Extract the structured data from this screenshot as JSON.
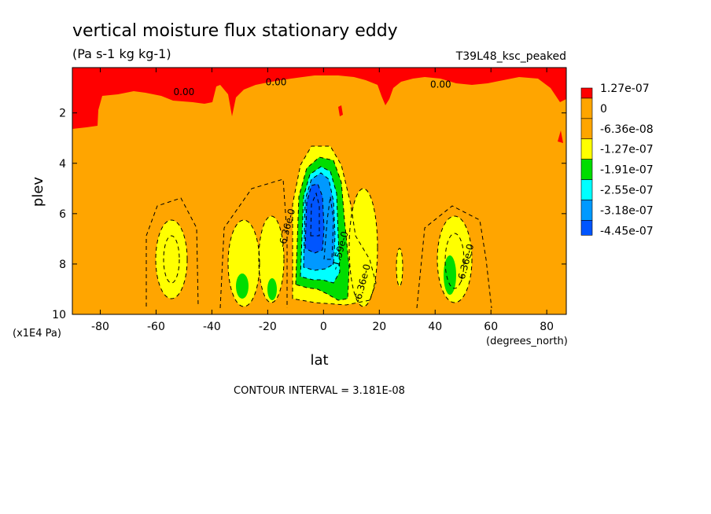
{
  "chart_data": {
    "type": "heatmap",
    "title": "vertical moisture flux stationary eddy",
    "subtitle": "(Pa s-1 kg kg-1)",
    "run_label": "T39L48_ksc_peaked",
    "xlabel": "lat",
    "xunits": "(degrees_north)",
    "ylabel": "plev",
    "yunits": "(x1E4 Pa)",
    "xlim": [
      -90,
      87
    ],
    "ylim": [
      10,
      0.2
    ],
    "xticks": [
      "-80",
      "-60",
      "-40",
      "-20",
      "0",
      "20",
      "40",
      "60",
      "80"
    ],
    "xtick_values": [
      -80,
      -60,
      -40,
      -20,
      0,
      20,
      40,
      60,
      80
    ],
    "yticks": [
      "2",
      "4",
      "6",
      "8",
      "10"
    ],
    "ytick_values": [
      2,
      4,
      6,
      8,
      10
    ],
    "contour_interval": "CONTOUR INTERVAL = 3.181E-08",
    "colorbar": {
      "labels": [
        "1.27e-07",
        "0",
        "-6.36e-08",
        "-1.27e-07",
        "-1.91e-07",
        "-2.55e-07",
        "-3.18e-07",
        "-4.45e-07"
      ],
      "colors": [
        "#ff0000",
        "#ffa500",
        "#ffa500",
        "#ffff00",
        "#00dd00",
        "#00ffff",
        "#0099ff",
        "#0055ff"
      ]
    },
    "contour_labels": [
      {
        "text": "0.00",
        "lat": -50,
        "plev": 1.3
      },
      {
        "text": "0.00",
        "lat": -17,
        "plev": 0.9
      },
      {
        "text": "0.00",
        "lat": 42,
        "plev": 1.0
      },
      {
        "text": "-6.36e-0",
        "lat": -12,
        "plev": 6.6
      },
      {
        "text": "-1.59e-0",
        "lat": 7,
        "plev": 7.5
      },
      {
        "text": "-6.36e-0",
        "lat": 15,
        "plev": 8.8
      },
      {
        "text": "-6.36e-0",
        "lat": 52,
        "plev": 8.0
      }
    ],
    "regions": [
      {
        "level": "orange",
        "color": "#ffa500",
        "value": "-6.36e-08 to 0",
        "extent": "background"
      },
      {
        "level": "red",
        "color": "#ff0000",
        "value": ">0",
        "lat_range": [
          -90,
          87
        ],
        "plev_range": [
          0.2,
          2.4
        ]
      },
      {
        "level": "yellow",
        "color": "#ffff00",
        "lat_center": -55,
        "plev_center": 8.0
      },
      {
        "level": "yellow",
        "color": "#ffff00",
        "lat_center": -28,
        "plev_center": 8.2
      },
      {
        "level": "yellow",
        "color": "#ffff00",
        "lat_center": -17,
        "plev_center": 8.5
      },
      {
        "level": "yellow",
        "color": "#ffff00",
        "lat_center": 15,
        "plev_center": 8.0
      },
      {
        "level": "yellow",
        "color": "#ffff00",
        "lat_center": 47,
        "plev_center": 8.3
      },
      {
        "level": "yellow",
        "color": "#ffff00",
        "lat_center": 0,
        "plev_center": 6.5
      },
      {
        "level": "green",
        "color": "#00dd00",
        "lat_center": 0,
        "plev_center": 6.3
      },
      {
        "level": "green",
        "color": "#00dd00",
        "lat_center": -27,
        "plev_center": 9.0
      },
      {
        "level": "green",
        "color": "#00dd00",
        "lat_center": -17,
        "plev_center": 9.0
      },
      {
        "level": "green",
        "color": "#00dd00",
        "lat_center": 47,
        "plev_center": 8.8
      },
      {
        "level": "cyan",
        "color": "#00ffff",
        "lat_center": 0,
        "plev_center": 6.3
      },
      {
        "level": "blue",
        "color": "#0099ff",
        "lat_center": -1,
        "plev_center": 6.2
      },
      {
        "level": "dark-blue",
        "color": "#0055ff",
        "lat_center": -2,
        "plev_center": 6.0
      }
    ]
  }
}
